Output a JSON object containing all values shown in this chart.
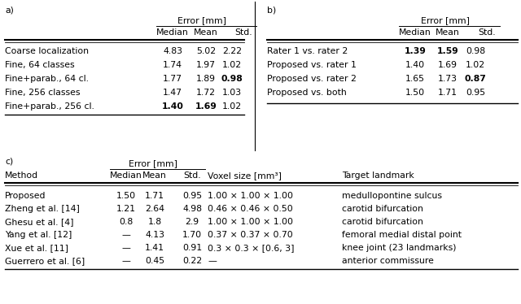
{
  "fig_width": 6.4,
  "fig_height": 3.74,
  "bg_color": "#ffffff",
  "table_a_rows": [
    [
      "Coarse localization",
      "4.83",
      "5.02",
      "2.22"
    ],
    [
      "Fine, 64 classes",
      "1.74",
      "1.97",
      "1.02"
    ],
    [
      "Fine+parab., 64 cl.",
      "1.77",
      "1.89",
      "0.98"
    ],
    [
      "Fine, 256 classes",
      "1.47",
      "1.72",
      "1.03"
    ],
    [
      "Fine+parab., 256 cl.",
      "1.40",
      "1.69",
      "1.02"
    ]
  ],
  "table_a_bold": [
    [
      false,
      false,
      false
    ],
    [
      false,
      false,
      false
    ],
    [
      false,
      false,
      true
    ],
    [
      false,
      false,
      false
    ],
    [
      true,
      true,
      false
    ]
  ],
  "table_b_rows": [
    [
      "Rater 1 vs. rater 2",
      "1.39",
      "1.59",
      "0.98"
    ],
    [
      "Proposed vs. rater 1",
      "1.40",
      "1.69",
      "1.02"
    ],
    [
      "Proposed vs. rater 2",
      "1.65",
      "1.73",
      "0.87"
    ],
    [
      "Proposed vs. both",
      "1.50",
      "1.71",
      "0.95"
    ]
  ],
  "table_b_bold": [
    [
      true,
      true,
      false
    ],
    [
      false,
      false,
      false
    ],
    [
      false,
      false,
      true
    ],
    [
      false,
      false,
      false
    ]
  ],
  "table_c_rows": [
    [
      "Proposed",
      "1.50",
      "1.71",
      "0.95",
      "1.00 × 1.00 × 1.00",
      "medullopontine sulcus"
    ],
    [
      "Zheng et al. [14]",
      "1.21",
      "2.64",
      "4.98",
      "0.46 × 0.46 × 0.50",
      "carotid bifurcation"
    ],
    [
      "Ghesu et al. [4]",
      "0.8",
      "1.8",
      "2.9",
      "1.00 × 1.00 × 1.00",
      "carotid bifurcation"
    ],
    [
      "Yang et al. [12]",
      "—",
      "4.13",
      "1.70",
      "0.37 × 0.37 × 0.70",
      "femoral medial distal point"
    ],
    [
      "Xue et al. [11]",
      "—",
      "1.41",
      "0.91",
      "0.3 × 0.3 × [0.6, 3]",
      "knee joint (23 landmarks)"
    ],
    [
      "Guerrero et al. [6]",
      "—",
      "0.45",
      "0.22",
      "—",
      "anterior commissure"
    ]
  ],
  "fs": 7.8,
  "fs_super": 5.5
}
